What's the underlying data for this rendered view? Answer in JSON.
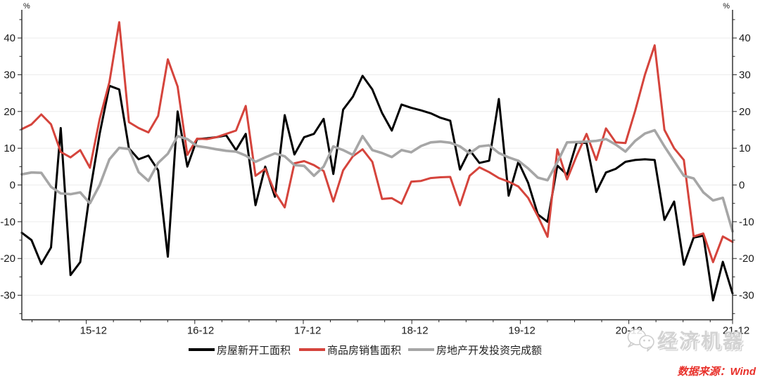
{
  "chart_data": {
    "type": "line",
    "title": "",
    "ylabel_left": "%",
    "ylabel_right": "%",
    "ylim": [
      -36.5,
      47.5
    ],
    "yticks": [
      -30,
      -20,
      -10,
      0,
      10,
      20,
      30,
      40
    ],
    "grid": "horizontal-light",
    "legend_position": "bottom-center",
    "x_tick_labels": [
      "15-12",
      "16-12",
      "17-12",
      "18-12",
      "19-12",
      "20-12",
      "21-12"
    ],
    "x_tick_indices": [
      7,
      18,
      29,
      40,
      51,
      62,
      73
    ],
    "series": [
      {
        "name": "房屋新开工面积",
        "color": "#000000",
        "values": [
          -13,
          -15,
          -21.5,
          -17,
          15.5,
          -24.5,
          -21,
          -2,
          14,
          27,
          26,
          10,
          7,
          8,
          4,
          -19.5,
          20,
          5,
          12.5,
          12.7,
          13,
          13.5,
          9.5,
          13.9,
          -5.5,
          5,
          -3.2,
          19,
          8.3,
          13,
          13.9,
          18,
          3,
          20.5,
          24,
          29.7,
          26,
          19.6,
          14.8,
          21.9,
          21,
          20.3,
          19.5,
          18.3,
          17.5,
          4.2,
          9.5,
          6,
          6.6,
          23.4,
          -2.9,
          6.3,
          0.6,
          -8,
          -10,
          5.3,
          2.8,
          11.6,
          11.4,
          -1.9,
          3.4,
          4.4,
          6.3,
          6.8,
          7,
          6.8,
          -9.5,
          -4.5,
          -21.7,
          -14.3,
          -13.8,
          -31.4,
          -20.9,
          -29.5
        ]
      },
      {
        "name": "商品房销售面积",
        "color": "#d5443c",
        "values": [
          15.2,
          16.5,
          19.2,
          16.5,
          9,
          7.5,
          9.5,
          4.7,
          18,
          28,
          44.3,
          17.1,
          15.5,
          14.3,
          18.8,
          34.2,
          26.8,
          8.2,
          12.6,
          12.5,
          13,
          13.9,
          14.8,
          21.5,
          2.5,
          4.4,
          -2,
          -6.1,
          5.9,
          6.5,
          5.4,
          3.8,
          -4.5,
          4,
          7.8,
          9.7,
          6.3,
          -3.8,
          -3.6,
          -5.1,
          0.9,
          1.1,
          1.9,
          2.1,
          2.2,
          -5.5,
          2.5,
          4.8,
          3.5,
          1.9,
          0.9,
          -0.4,
          -3.5,
          -8.5,
          -14.1,
          9.7,
          1.5,
          8,
          13.9,
          6.8,
          15.4,
          11.6,
          11.4,
          20.2,
          30,
          38,
          15,
          10,
          6.8,
          -14,
          -13.2,
          -21,
          -14,
          -15.5
        ]
      },
      {
        "name": "房地产开发投资完成额",
        "color": "#a6a6a6",
        "values": [
          2.9,
          3.4,
          3.3,
          -0.5,
          -2.3,
          -2.5,
          -2,
          -5,
          0,
          7,
          10.1,
          9.8,
          3.5,
          1.1,
          6,
          8.5,
          13.3,
          12.5,
          10.6,
          10.2,
          9.7,
          9.3,
          9.1,
          8,
          6.3,
          7.5,
          8.6,
          7.8,
          5.4,
          5.2,
          2.5,
          5,
          10.5,
          9.5,
          8.2,
          13.3,
          9.5,
          8.7,
          7.6,
          9.5,
          8.9,
          10.6,
          11.6,
          11.8,
          11.5,
          10.5,
          8.6,
          10.5,
          10.8,
          8.7,
          7.5,
          6.6,
          4.5,
          2,
          1.3,
          6.2,
          11.6,
          11.7,
          11.8,
          12,
          12.5,
          11,
          9.1,
          12,
          14,
          14.9,
          10.5,
          6.5,
          2.5,
          1.8,
          -2,
          -4.2,
          -3.5,
          -12.6
        ]
      }
    ],
    "colors": {
      "axis": "#262626",
      "gridline": "#ececec",
      "tick_label": "#1a1a1a"
    }
  },
  "watermark": {
    "text": "经济机器",
    "icon": "wechat-chat-bubbles-icon"
  },
  "source_note": "数据来源：Wind"
}
